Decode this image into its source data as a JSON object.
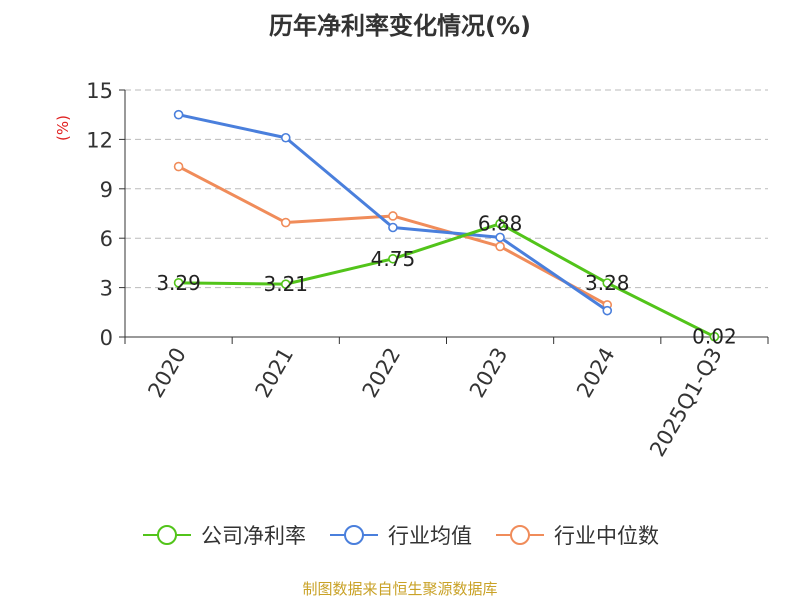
{
  "chart_data": {
    "type": "line",
    "title": "历年净利率变化情况(%)",
    "ylabel": "(%)",
    "categories": [
      "2020",
      "2021",
      "2022",
      "2023",
      "2024",
      "2025Q1-Q3"
    ],
    "ylim": [
      0,
      15
    ],
    "yticks": [
      0,
      3,
      6,
      9,
      12,
      15
    ],
    "grid": true,
    "legend_position": "bottom",
    "series": [
      {
        "name": "公司净利率",
        "color": "#52c41a",
        "values": [
          3.29,
          3.21,
          4.75,
          6.88,
          3.28,
          0.02
        ],
        "labels": [
          "3.29",
          "3.21",
          "4.75",
          "6.88",
          "3.28",
          "0.02"
        ]
      },
      {
        "name": "行业均值",
        "color": "#4a7fdc",
        "values": [
          13.5,
          12.1,
          6.65,
          6.05,
          1.6,
          null
        ]
      },
      {
        "name": "行业中位数",
        "color": "#f08c5a",
        "values": [
          10.35,
          6.95,
          7.35,
          5.5,
          1.95,
          null
        ]
      }
    ]
  },
  "footer": {
    "source": "制图数据来自恒生聚源数据库"
  }
}
